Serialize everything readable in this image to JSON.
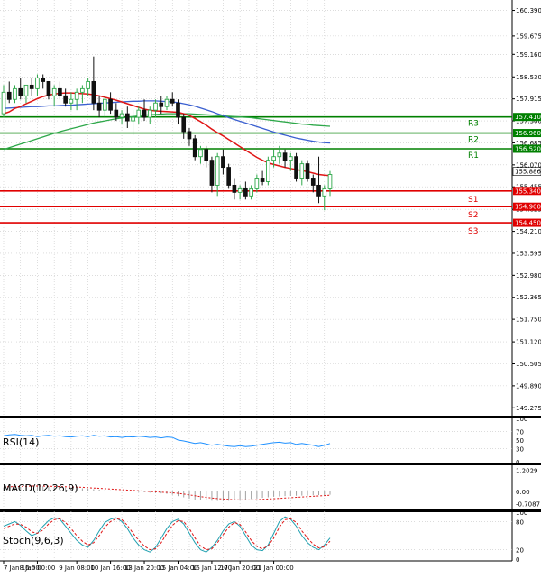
{
  "chart_data": {
    "type": "candlestick",
    "main": {
      "price_ticks": [
        "160.390",
        "159.675",
        "159.160",
        "158.530",
        "157.915",
        "157.300",
        "156.685",
        "156.070",
        "155.455",
        "154.825",
        "154.210",
        "153.595",
        "152.980",
        "152.365",
        "151.750",
        "151.120",
        "150.505",
        "149.890",
        "149.275"
      ],
      "tick_values": [
        160.39,
        159.675,
        159.16,
        158.53,
        157.915,
        157.3,
        156.685,
        156.07,
        155.455,
        154.825,
        154.21,
        153.595,
        152.98,
        152.365,
        151.75,
        151.12,
        150.505,
        149.89,
        149.275
      ],
      "ylim": [
        149.08,
        160.58
      ],
      "current_price": "155.886",
      "current_value": 155.886,
      "levels": [
        {
          "name": "R3",
          "price": "157.410",
          "value": 157.41,
          "color": "#008000"
        },
        {
          "name": "R2",
          "price": "156.960",
          "value": 156.96,
          "color": "#008000"
        },
        {
          "name": "R1",
          "price": "156.520",
          "value": 156.52,
          "color": "#008000"
        },
        {
          "name": "S1",
          "price": "155.340",
          "value": 155.34,
          "color": "#e00000"
        },
        {
          "name": "S2",
          "price": "154.900",
          "value": 154.9,
          "color": "#e00000"
        },
        {
          "name": "S3",
          "price": "154.450",
          "value": 154.45,
          "color": "#e00000"
        }
      ],
      "candles": [
        [
          157.5,
          158.3,
          157.4,
          158.1
        ],
        [
          158.1,
          158.4,
          157.8,
          157.9
        ],
        [
          157.9,
          158.3,
          157.8,
          158.2
        ],
        [
          158.2,
          158.5,
          157.9,
          158.0
        ],
        [
          158.0,
          158.3,
          157.8,
          158.3
        ],
        [
          158.3,
          158.5,
          158.0,
          158.2
        ],
        [
          158.2,
          158.6,
          158.0,
          158.5
        ],
        [
          158.5,
          158.6,
          158.2,
          158.4
        ],
        [
          158.4,
          158.4,
          157.9,
          158.0
        ],
        [
          158.0,
          158.3,
          157.7,
          158.2
        ],
        [
          158.2,
          158.4,
          157.9,
          158.0
        ],
        [
          158.0,
          158.2,
          157.7,
          157.8
        ],
        [
          157.8,
          158.1,
          157.6,
          157.9
        ],
        [
          157.9,
          158.2,
          157.6,
          158.1
        ],
        [
          158.1,
          158.3,
          157.8,
          158.2
        ],
        [
          158.2,
          158.5,
          158.0,
          158.4
        ],
        [
          158.4,
          159.1,
          157.6,
          157.8
        ],
        [
          157.8,
          158.0,
          157.4,
          157.6
        ],
        [
          157.6,
          158.0,
          157.4,
          157.9
        ],
        [
          157.9,
          158.1,
          157.5,
          157.6
        ],
        [
          157.6,
          157.8,
          157.3,
          157.4
        ],
        [
          157.4,
          157.6,
          157.2,
          157.5
        ],
        [
          157.5,
          157.7,
          157.1,
          157.3
        ],
        [
          157.3,
          157.6,
          156.9,
          157.4
        ],
        [
          157.4,
          157.7,
          157.2,
          157.6
        ],
        [
          157.6,
          157.9,
          157.3,
          157.4
        ],
        [
          157.4,
          157.7,
          157.2,
          157.6
        ],
        [
          157.6,
          157.9,
          157.4,
          157.8
        ],
        [
          157.8,
          158.0,
          157.5,
          157.7
        ],
        [
          157.7,
          158.0,
          157.6,
          157.9
        ],
        [
          157.9,
          158.1,
          157.7,
          157.8
        ],
        [
          157.8,
          157.9,
          157.2,
          157.4
        ],
        [
          157.4,
          157.5,
          156.8,
          157.0
        ],
        [
          157.0,
          157.1,
          156.6,
          156.8
        ],
        [
          156.8,
          156.9,
          156.2,
          156.3
        ],
        [
          156.3,
          156.6,
          156.1,
          156.5
        ],
        [
          156.5,
          156.6,
          156.0,
          156.2
        ],
        [
          156.2,
          156.3,
          155.3,
          155.5
        ],
        [
          155.5,
          156.4,
          155.2,
          156.3
        ],
        [
          156.3,
          156.5,
          155.8,
          156.0
        ],
        [
          156.0,
          156.1,
          155.4,
          155.5
        ],
        [
          155.5,
          155.7,
          155.1,
          155.3
        ],
        [
          155.3,
          155.5,
          155.1,
          155.4
        ],
        [
          155.4,
          155.6,
          155.1,
          155.2
        ],
        [
          155.2,
          155.5,
          155.1,
          155.4
        ],
        [
          155.4,
          155.8,
          155.3,
          155.7
        ],
        [
          155.7,
          155.9,
          155.5,
          155.6
        ],
        [
          155.6,
          156.3,
          155.5,
          156.2
        ],
        [
          156.2,
          156.5,
          156.0,
          156.3
        ],
        [
          156.3,
          156.6,
          156.1,
          156.4
        ],
        [
          156.4,
          156.5,
          156.0,
          156.2
        ],
        [
          156.2,
          156.4,
          155.9,
          156.3
        ],
        [
          156.3,
          156.4,
          155.6,
          155.7
        ],
        [
          155.7,
          156.2,
          155.5,
          156.1
        ],
        [
          156.1,
          156.2,
          155.6,
          155.7
        ],
        [
          155.7,
          155.8,
          155.3,
          155.5
        ],
        [
          155.5,
          156.3,
          155.0,
          155.2
        ],
        [
          155.2,
          155.5,
          154.8,
          155.4
        ],
        [
          155.4,
          155.9,
          155.2,
          155.8
        ]
      ],
      "ma_red": [
        157.5,
        157.55,
        157.65,
        157.7,
        157.78,
        157.85,
        157.92,
        157.98,
        158.02,
        158.05,
        158.07,
        158.08,
        158.08,
        158.07,
        158.06,
        158.05,
        158.03,
        158.0,
        157.96,
        157.92,
        157.88,
        157.83,
        157.78,
        157.73,
        157.68,
        157.63,
        157.6,
        157.58,
        157.57,
        157.56,
        157.55,
        157.54,
        157.5,
        157.45,
        157.37,
        157.28,
        157.18,
        157.07,
        156.97,
        156.88,
        156.78,
        156.68,
        156.58,
        156.48,
        156.38,
        156.28,
        156.2,
        156.13,
        156.08,
        156.04,
        156.0,
        155.97,
        155.94,
        155.91,
        155.88,
        155.84,
        155.8,
        155.78,
        155.77
      ],
      "ma_blue": [
        157.65,
        157.66,
        157.67,
        157.68,
        157.69,
        157.7,
        157.7,
        157.71,
        157.72,
        157.72,
        157.73,
        157.74,
        157.74,
        157.75,
        157.76,
        157.77,
        157.78,
        157.79,
        157.8,
        157.81,
        157.82,
        157.83,
        157.84,
        157.85,
        157.85,
        157.86,
        157.86,
        157.86,
        157.85,
        157.84,
        157.83,
        157.81,
        157.78,
        157.75,
        157.71,
        157.66,
        157.61,
        157.56,
        157.5,
        157.45,
        157.39,
        157.34,
        157.29,
        157.24,
        157.19,
        157.14,
        157.09,
        157.04,
        156.99,
        156.94,
        156.9,
        156.86,
        156.82,
        156.79,
        156.76,
        156.73,
        156.71,
        156.69,
        156.68
      ],
      "ma_green": [
        156.5,
        156.55,
        156.6,
        156.65,
        156.7,
        156.75,
        156.8,
        156.85,
        156.9,
        156.95,
        157.0,
        157.04,
        157.08,
        157.12,
        157.16,
        157.2,
        157.24,
        157.27,
        157.3,
        157.33,
        157.36,
        157.38,
        157.4,
        157.42,
        157.44,
        157.46,
        157.47,
        157.48,
        157.49,
        157.5,
        157.5,
        157.5,
        157.5,
        157.5,
        157.49,
        157.48,
        157.47,
        157.46,
        157.45,
        157.44,
        157.43,
        157.42,
        157.41,
        157.4,
        157.39,
        157.37,
        157.35,
        157.33,
        157.31,
        157.29,
        157.27,
        157.25,
        157.23,
        157.21,
        157.2,
        157.18,
        157.17,
        157.16,
        157.15
      ]
    },
    "x_labels": [
      "7 Jan 16:00",
      "8 Jan 00:00",
      "9 Jan 08:00",
      "10 Jan 16:00",
      "13 Jan 20:00",
      "15 Jan 04:00",
      "16 Jan 12:00",
      "17 Jan 20:00",
      "21 Jan 00:00"
    ],
    "x_label_index": [
      0,
      6,
      13,
      19,
      25,
      31,
      37,
      42,
      48
    ],
    "rsi": {
      "title": "RSI(14)",
      "ticks": [
        "100",
        "70",
        "50",
        "30",
        "0"
      ],
      "tick_values": [
        100,
        70,
        50,
        30,
        0
      ],
      "values": [
        60,
        62,
        63,
        61,
        60,
        61,
        58,
        60,
        61,
        59,
        60,
        58,
        57,
        59,
        60,
        58,
        61,
        59,
        60,
        57,
        58,
        56,
        58,
        57,
        59,
        58,
        56,
        57,
        55,
        57,
        56,
        50,
        48,
        45,
        42,
        44,
        41,
        38,
        40,
        38,
        36,
        35,
        37,
        35,
        36,
        38,
        40,
        42,
        44,
        45,
        43,
        44,
        40,
        42,
        40,
        38,
        35,
        38,
        42
      ]
    },
    "macd": {
      "title": "MACD(12,26,9)",
      "ticks": [
        "1.2029",
        "0.00",
        "-0.7087"
      ],
      "tick_values": [
        1.2029,
        0,
        -0.7087
      ],
      "ylim": [
        -1.0,
        1.5
      ],
      "signal": [
        0.25,
        0.26,
        0.27,
        0.28,
        0.29,
        0.3,
        0.3,
        0.3,
        0.29,
        0.28,
        0.27,
        0.26,
        0.25,
        0.24,
        0.23,
        0.21,
        0.19,
        0.17,
        0.15,
        0.13,
        0.11,
        0.09,
        0.07,
        0.05,
        0.03,
        0.01,
        -0.01,
        -0.03,
        -0.05,
        -0.07,
        -0.09,
        -0.12,
        -0.16,
        -0.21,
        -0.26,
        -0.31,
        -0.35,
        -0.39,
        -0.42,
        -0.45,
        -0.47,
        -0.49,
        -0.5,
        -0.5,
        -0.5,
        -0.49,
        -0.47,
        -0.45,
        -0.43,
        -0.41,
        -0.39,
        -0.37,
        -0.35,
        -0.33,
        -0.31,
        -0.29,
        -0.27,
        -0.25,
        -0.23
      ],
      "hist": [
        0.2,
        0.22,
        0.24,
        0.26,
        0.28,
        0.29,
        0.3,
        0.29,
        0.27,
        0.25,
        0.24,
        0.22,
        0.2,
        0.19,
        0.17,
        0.15,
        0.12,
        0.1,
        0.08,
        0.05,
        0.03,
        0.01,
        -0.01,
        -0.03,
        -0.05,
        -0.06,
        -0.08,
        -0.1,
        -0.12,
        -0.15,
        -0.2,
        -0.28,
        -0.35,
        -0.42,
        -0.48,
        -0.5,
        -0.52,
        -0.55,
        -0.56,
        -0.56,
        -0.55,
        -0.53,
        -0.51,
        -0.48,
        -0.45,
        -0.42,
        -0.38,
        -0.35,
        -0.32,
        -0.3,
        -0.28,
        -0.27,
        -0.26,
        -0.25,
        -0.24,
        -0.23,
        -0.22,
        -0.22,
        -0.2
      ]
    },
    "stoch": {
      "title": "Stoch(9,6,3)",
      "ticks": [
        "100",
        "80",
        "20",
        "0"
      ],
      "tick_values": [
        100,
        80,
        20,
        0
      ],
      "main": [
        70,
        75,
        80,
        72,
        60,
        50,
        55,
        70,
        82,
        88,
        85,
        70,
        55,
        40,
        30,
        25,
        40,
        60,
        78,
        85,
        88,
        80,
        65,
        45,
        30,
        20,
        15,
        25,
        45,
        65,
        80,
        85,
        75,
        55,
        35,
        20,
        15,
        25,
        40,
        60,
        75,
        80,
        70,
        50,
        30,
        20,
        18,
        30,
        55,
        80,
        90,
        85,
        70,
        50,
        35,
        25,
        20,
        30,
        45
      ],
      "signal": [
        65,
        70,
        75,
        74,
        68,
        58,
        55,
        62,
        75,
        84,
        86,
        78,
        65,
        50,
        38,
        30,
        35,
        50,
        68,
        80,
        86,
        84,
        72,
        55,
        40,
        28,
        20,
        22,
        35,
        55,
        72,
        82,
        80,
        65,
        45,
        28,
        20,
        22,
        35,
        52,
        68,
        78,
        74,
        58,
        40,
        27,
        22,
        28,
        45,
        68,
        84,
        86,
        78,
        60,
        45,
        32,
        24,
        26,
        38
      ]
    }
  }
}
